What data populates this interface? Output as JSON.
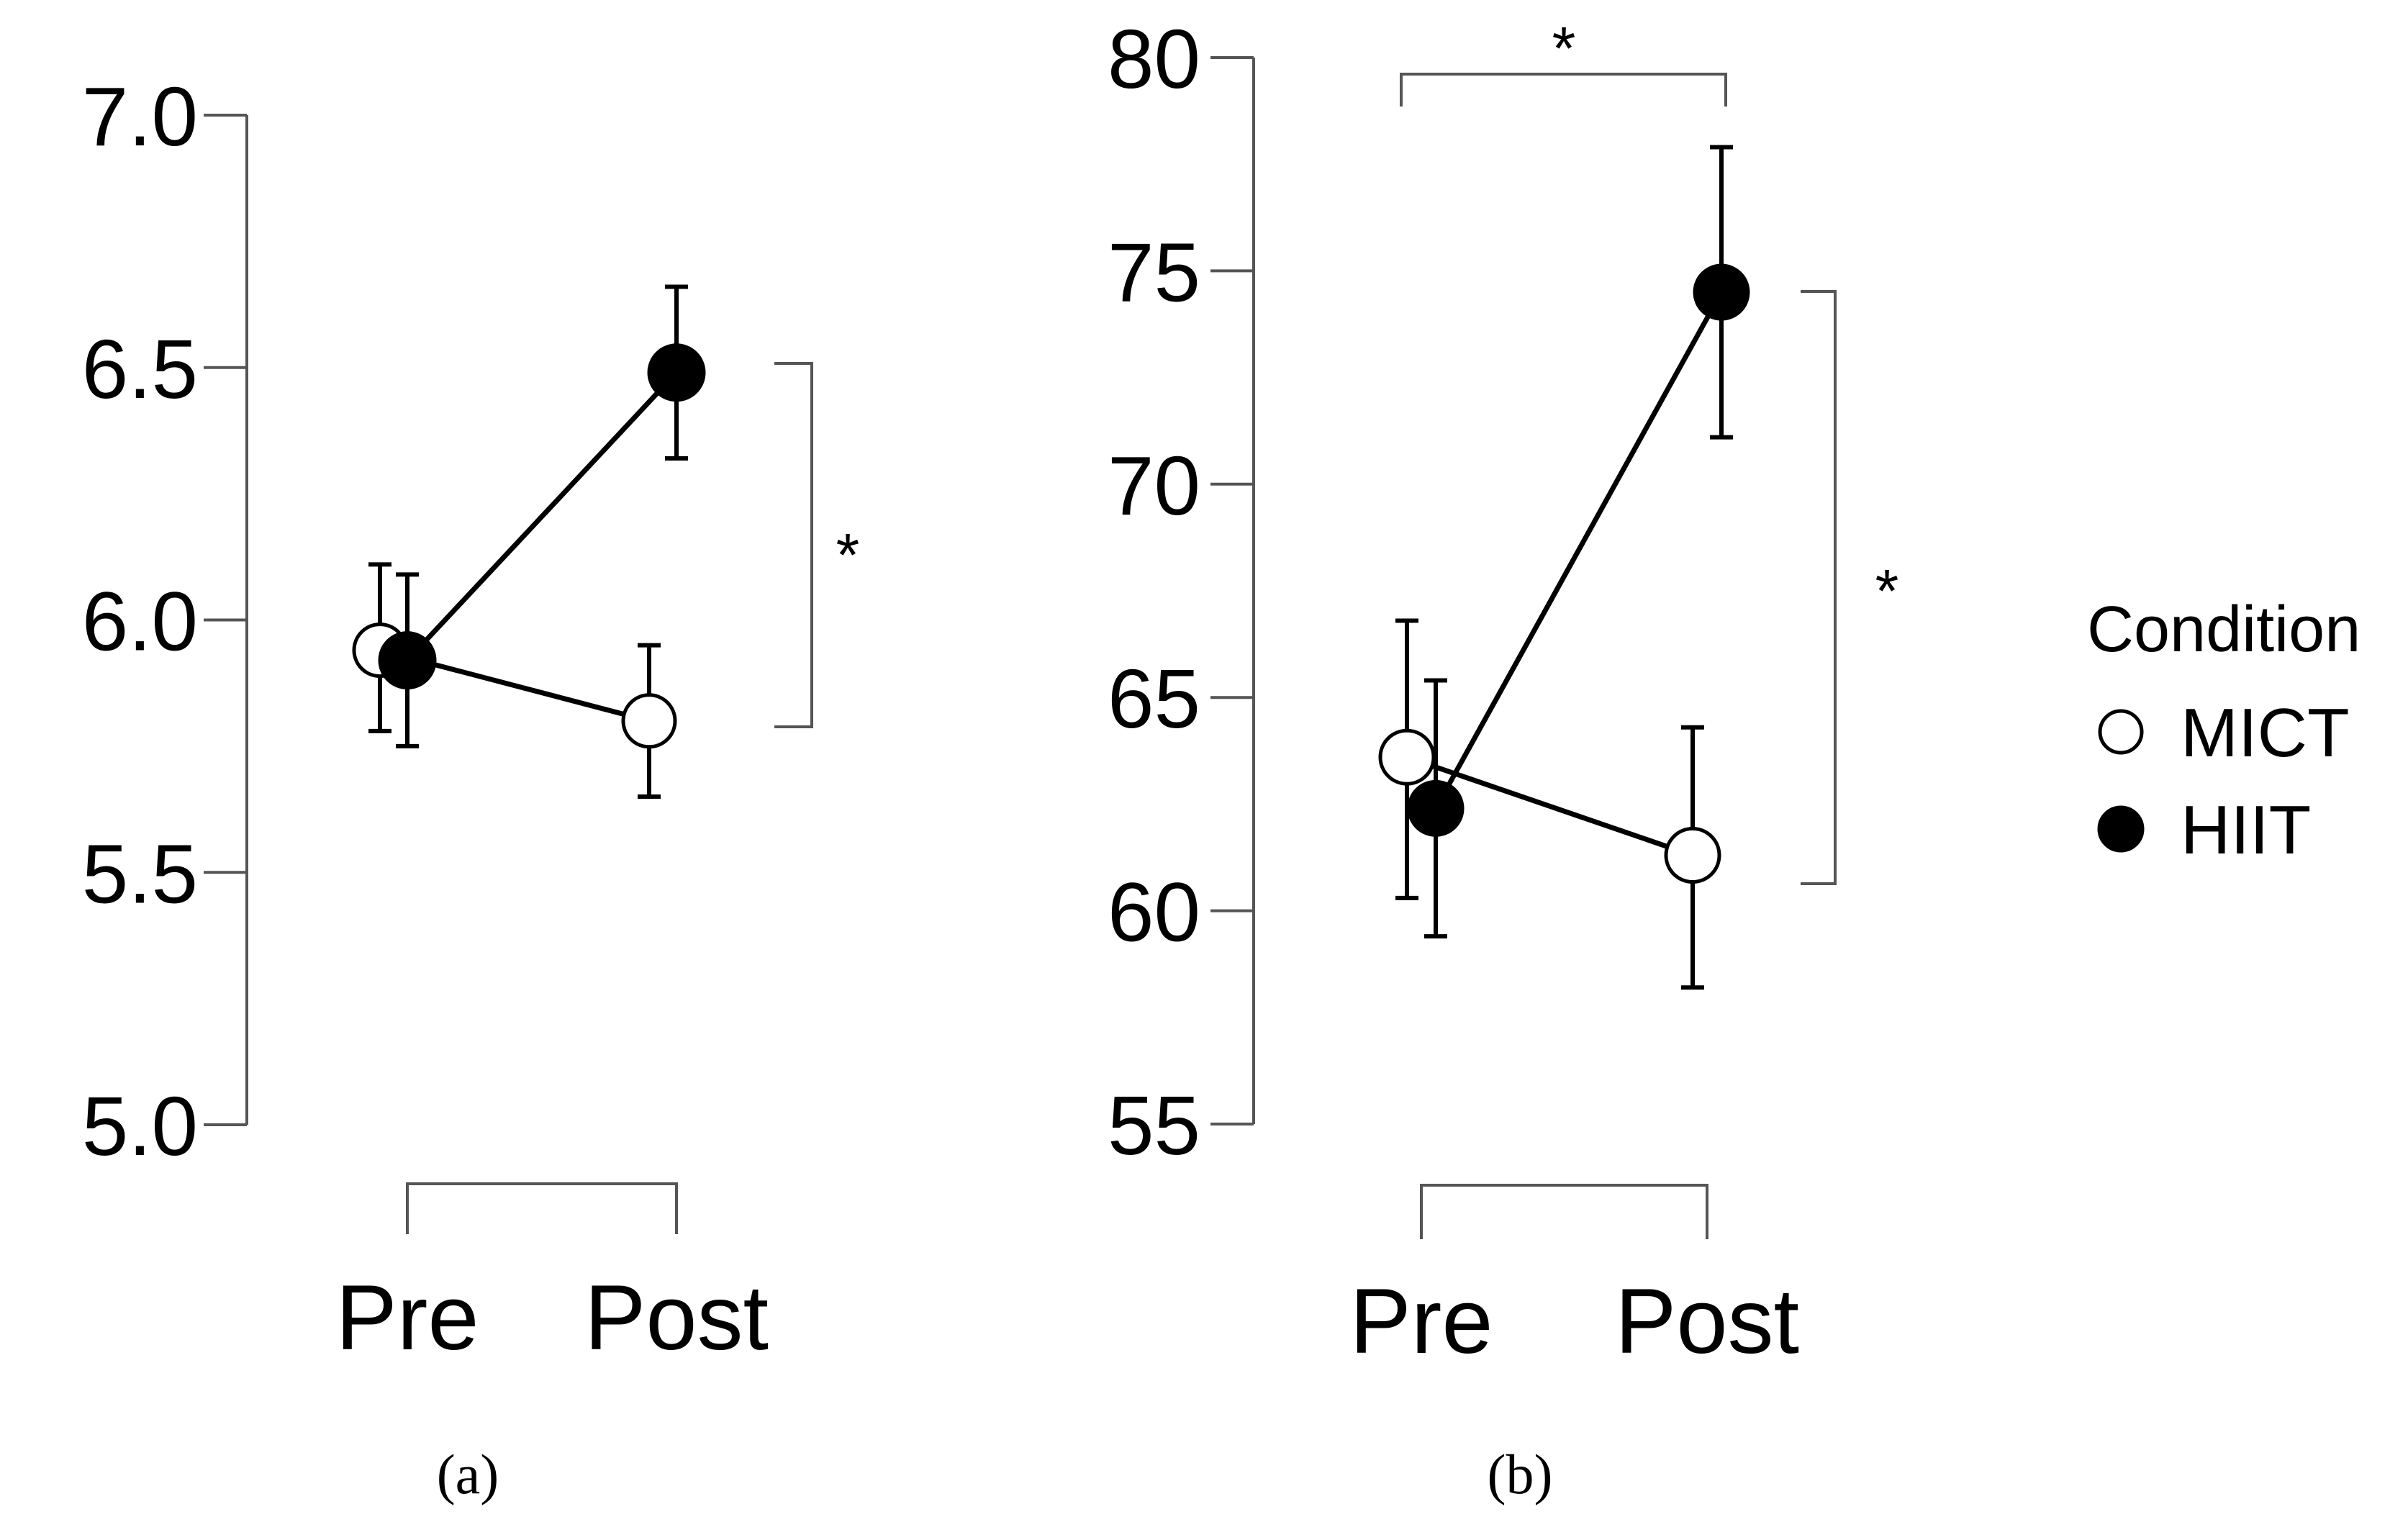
{
  "chart_data": [
    {
      "type": "line",
      "panel_label": "(a)",
      "x": [
        "Pre",
        "Post"
      ],
      "ylim": [
        5.0,
        7.0
      ],
      "yticks": [
        5.0,
        5.5,
        6.0,
        6.5,
        7.0
      ],
      "ytick_labels": [
        "5.0",
        "5.5",
        "6.0",
        "6.5",
        "7.0"
      ],
      "series": [
        {
          "name": "MICT",
          "values": [
            5.94,
            5.8
          ],
          "err_low": [
            5.78,
            5.65
          ],
          "err_high": [
            6.11,
            5.95
          ]
        },
        {
          "name": "HIIT",
          "values": [
            5.92,
            6.49
          ],
          "err_low": [
            5.75,
            6.32
          ],
          "err_high": [
            6.09,
            6.66
          ]
        }
      ],
      "annotations": [
        {
          "type": "bracket",
          "between": "MICT vs HIIT at Post",
          "label": "*"
        }
      ]
    },
    {
      "type": "line",
      "panel_label": "(b)",
      "x": [
        "Pre",
        "Post"
      ],
      "ylim": [
        55,
        80
      ],
      "yticks": [
        55,
        60,
        65,
        70,
        75,
        80
      ],
      "ytick_labels": [
        "55",
        "60",
        "65",
        "70",
        "75",
        "80"
      ],
      "series": [
        {
          "name": "MICT",
          "values": [
            63.6,
            61.3
          ],
          "err_low": [
            60.3,
            58.2
          ],
          "err_high": [
            66.8,
            64.3
          ]
        },
        {
          "name": "HIIT",
          "values": [
            62.4,
            74.5
          ],
          "err_low": [
            59.4,
            71.1
          ],
          "err_high": [
            65.4,
            77.9
          ]
        }
      ],
      "annotations": [
        {
          "type": "bracket",
          "between": "Pre vs Post",
          "label": "*"
        },
        {
          "type": "bracket",
          "between": "MICT vs HIIT at Post",
          "label": "*"
        }
      ]
    }
  ],
  "legend": {
    "title": "Condition",
    "items": [
      {
        "label": "MICT",
        "marker": "open-circle"
      },
      {
        "label": "HIIT",
        "marker": "filled-circle"
      }
    ]
  },
  "colors": {
    "ink": "#000000",
    "axis": "#555555",
    "open_fill": "#ffffff"
  }
}
